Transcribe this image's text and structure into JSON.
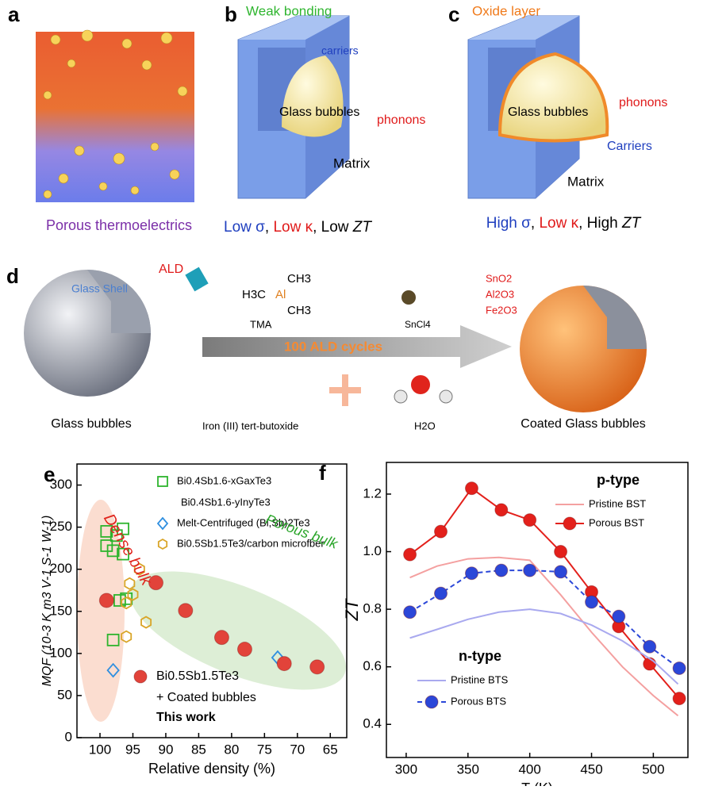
{
  "panels": {
    "a": {
      "letter": "a",
      "caption": "Porous thermoelectrics"
    },
    "b": {
      "letter": "b",
      "labels": [
        "Weak bonding",
        "carriers",
        "Glass bubbles",
        "phonons",
        "Matrix"
      ],
      "caption": [
        "Low σ",
        ", ",
        "Low κ",
        ", Low ",
        "ZT"
      ]
    },
    "c": {
      "letter": "c",
      "labels": [
        "Oxide layer",
        "Glass bubbles",
        "phonons",
        "Carriers",
        "Matrix"
      ],
      "caption": [
        "High σ",
        ", ",
        "Low κ",
        ", High ",
        "ZT"
      ]
    },
    "d": {
      "letter": "d",
      "labels": [
        "ALD",
        "Glass Shell",
        "H3C",
        "Al",
        "CH3",
        "CH3",
        "TMA",
        "SnCl4",
        "100  ALD  cycles",
        "Iron (III) tert-butoxide",
        "H2O",
        "Glass bubbles",
        "Coated Glass bubbles",
        "SnO2",
        "Al2O3",
        "Fe2O3"
      ]
    }
  },
  "chart_data": [
    {
      "type": "scatter",
      "letter": "e",
      "xlabel": "Relative density (%)",
      "ylabel": "MQF (10-3 K m3  V-1 S-1 W-1)",
      "xlim": [
        103.5,
        62.5
      ],
      "xticks": [
        100,
        95,
        90,
        85,
        80,
        75,
        70,
        65
      ],
      "ylim": [
        0,
        325
      ],
      "yticks": [
        0,
        50,
        100,
        150,
        200,
        250,
        300
      ],
      "annotations": [
        "Dense bulk",
        "Porous bulk",
        "+ Coated bubbles",
        "This work"
      ],
      "series": [
        {
          "name": "Bi0.4Sb1.6-xGaxTe3",
          "color": "#2db42d",
          "marker": "square",
          "x": [
            99,
            97.5,
            96.5,
            99,
            98,
            96.5
          ],
          "values": [
            245,
            240,
            248,
            228,
            222,
            218
          ]
        },
        {
          "name": "Bi0.4Sb1.6-yInyTe3",
          "color": "#2db42d",
          "marker": "square",
          "x": [
            97,
            96,
            98
          ],
          "values": [
            163,
            165,
            116
          ]
        },
        {
          "name": "Melt-Centrifuged (Bi,Sb)2Te3",
          "color": "#2f8fe0",
          "marker": "diamond",
          "x": [
            98,
            73
          ],
          "values": [
            80,
            95
          ]
        },
        {
          "name": "Bi0.5Sb1.5Te3/carbon microfber",
          "color": "#d9a528",
          "marker": "hexagon",
          "x": [
            94,
            95.5,
            95,
            96,
            93,
            96
          ],
          "values": [
            200,
            183,
            170,
            160,
            137,
            120
          ]
        },
        {
          "name": "Bi0.5Sb1.5Te3",
          "color": "#e2433a",
          "marker": "circle",
          "x": [
            99,
            91.5,
            87,
            81.5,
            78,
            72,
            67
          ],
          "values": [
            163,
            184,
            151,
            119,
            105,
            88,
            84
          ]
        }
      ]
    },
    {
      "type": "line",
      "letter": "f",
      "xlabel": "T (K)",
      "ylabel": "ZT",
      "xlim": [
        284,
        528
      ],
      "xticks": [
        300,
        350,
        400,
        450,
        500
      ],
      "ylim": [
        0.285,
        1.31
      ],
      "yticks": [
        0.4,
        0.6,
        0.8,
        {
          "value": 1.0,
          "label": "1.0"
        },
        1.2
      ],
      "annotations": [
        "p-type",
        "n-type"
      ],
      "series": [
        {
          "name": "Pristine BST",
          "color": "#f4a0a0",
          "marker": "none",
          "x": [
            303,
            325,
            350,
            375,
            400,
            425,
            450,
            475,
            500,
            520
          ],
          "values": [
            0.91,
            0.95,
            0.975,
            0.98,
            0.97,
            0.85,
            0.72,
            0.6,
            0.5,
            0.43
          ]
        },
        {
          "name": "Porous BST",
          "color": "#e3201b",
          "marker": "circle",
          "x": [
            303,
            328,
            353,
            377,
            400,
            425,
            450,
            472,
            497,
            521
          ],
          "values": [
            0.99,
            1.07,
            1.22,
            1.145,
            1.11,
            1.0,
            0.86,
            0.74,
            0.61,
            0.49
          ]
        },
        {
          "name": "Pristine BTS",
          "color": "#a9a9ef",
          "marker": "none",
          "x": [
            303,
            325,
            350,
            375,
            400,
            425,
            450,
            475,
            500,
            520
          ],
          "values": [
            0.7,
            0.73,
            0.765,
            0.79,
            0.8,
            0.785,
            0.745,
            0.69,
            0.62,
            0.54
          ]
        },
        {
          "name": "Porous BTS",
          "color": "#2b47d8",
          "marker": "circle",
          "dash": true,
          "x": [
            303,
            328,
            353,
            377,
            400,
            425,
            450,
            472,
            497,
            521
          ],
          "values": [
            0.79,
            0.855,
            0.925,
            0.935,
            0.935,
            0.93,
            0.825,
            0.775,
            0.67,
            0.595
          ]
        }
      ]
    }
  ]
}
